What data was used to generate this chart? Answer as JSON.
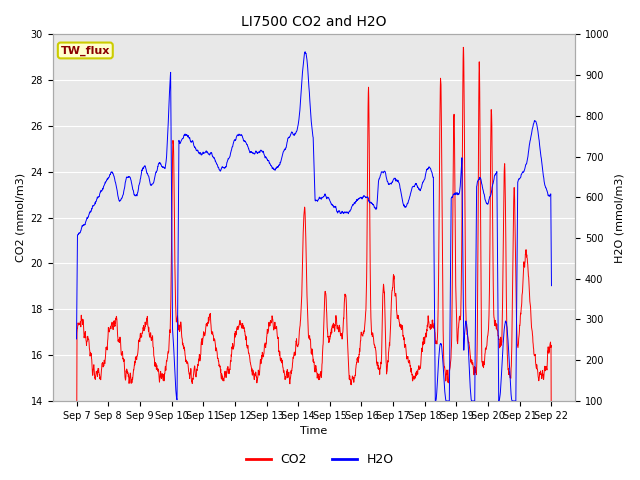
{
  "title": "LI7500 CO2 and H2O",
  "xlabel": "Time",
  "ylabel_left": "CO2 (mmol/m3)",
  "ylabel_right": "H2O (mmol/m3)",
  "ylim_left": [
    14,
    30
  ],
  "ylim_right": [
    100,
    1000
  ],
  "yticks_left": [
    14,
    16,
    18,
    20,
    22,
    24,
    26,
    28,
    30
  ],
  "yticks_right": [
    100,
    200,
    300,
    400,
    500,
    600,
    700,
    800,
    900,
    1000
  ],
  "xtick_labels": [
    "Sep 7",
    "Sep 8",
    "Sep 9",
    "Sep 10",
    "Sep 11",
    "Sep 12",
    "Sep 13",
    "Sep 14",
    "Sep 15",
    "Sep 16",
    "Sep 17",
    "Sep 18",
    "Sep 19",
    "Sep 20",
    "Sep 21",
    "Sep 22"
  ],
  "legend_label": "TW_flux",
  "bg_color": "#e8e8e8",
  "line_co2_color": "red",
  "line_h2o_color": "blue",
  "legend_text_color": "#8b0000",
  "legend_bg": "#ffffcc",
  "legend_border": "#cccc00",
  "title_fontsize": 10,
  "label_fontsize": 8,
  "tick_fontsize": 7
}
